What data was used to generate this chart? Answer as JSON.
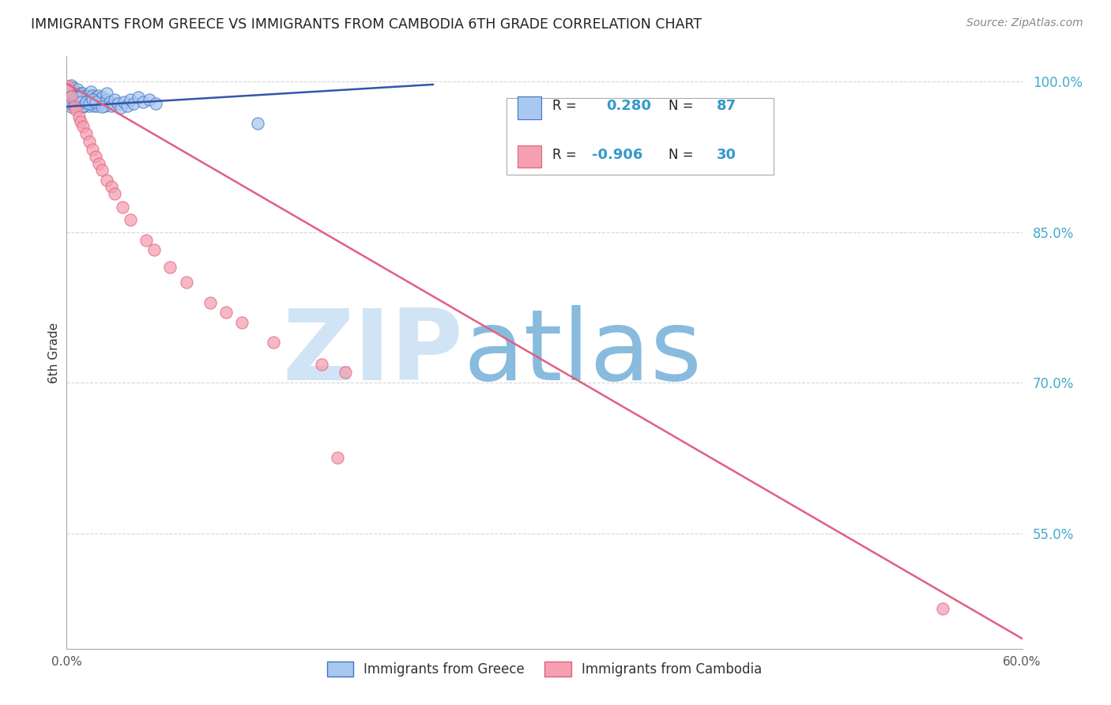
{
  "title": "IMMIGRANTS FROM GREECE VS IMMIGRANTS FROM CAMBODIA 6TH GRADE CORRELATION CHART",
  "source": "Source: ZipAtlas.com",
  "ylabel": "6th Grade",
  "xlim": [
    0.0,
    0.6
  ],
  "ylim": [
    0.435,
    1.025
  ],
  "yticks": [
    1.0,
    0.85,
    0.7,
    0.55
  ],
  "ytick_labels": [
    "100.0%",
    "85.0%",
    "70.0%",
    "55.0%"
  ],
  "xticks": [
    0.0,
    0.1,
    0.2,
    0.3,
    0.4,
    0.5,
    0.6
  ],
  "xtick_labels": [
    "0.0%",
    "",
    "",
    "",
    "",
    "",
    "60.0%"
  ],
  "greece_R": 0.28,
  "greece_N": 87,
  "cambodia_R": -0.906,
  "cambodia_N": 30,
  "greece_color": "#a8c8f0",
  "greece_edge_color": "#4472c4",
  "cambodia_color": "#f4a0b0",
  "cambodia_edge_color": "#e06080",
  "watermark_zip": "ZIP",
  "watermark_atlas": "atlas",
  "watermark_color_zip": "#d0e4f5",
  "watermark_color_atlas": "#88bbdd",
  "background_color": "#ffffff",
  "grid_color": "#cccccc",
  "title_color": "#222222",
  "ytick_color": "#44aacc",
  "legend_text_color": "#222222",
  "legend_value_color": "#3399cc",
  "greece_line_color": "#3355aa",
  "cambodia_line_color": "#dd4477",
  "greece_scatter_x": [
    0.0005,
    0.001,
    0.0012,
    0.0015,
    0.002,
    0.002,
    0.002,
    0.0025,
    0.003,
    0.003,
    0.003,
    0.003,
    0.004,
    0.004,
    0.004,
    0.005,
    0.005,
    0.005,
    0.006,
    0.006,
    0.006,
    0.007,
    0.007,
    0.007,
    0.008,
    0.008,
    0.009,
    0.009,
    0.01,
    0.01,
    0.01,
    0.011,
    0.011,
    0.012,
    0.012,
    0.013,
    0.013,
    0.014,
    0.014,
    0.015,
    0.015,
    0.016,
    0.016,
    0.017,
    0.017,
    0.018,
    0.018,
    0.019,
    0.019,
    0.02,
    0.02,
    0.021,
    0.022,
    0.022,
    0.023,
    0.024,
    0.025,
    0.025,
    0.027,
    0.028,
    0.03,
    0.032,
    0.034,
    0.036,
    0.038,
    0.04,
    0.042,
    0.045,
    0.048,
    0.052,
    0.056,
    0.001,
    0.002,
    0.003,
    0.004,
    0.005,
    0.006,
    0.007,
    0.008,
    0.009,
    0.01,
    0.012,
    0.014,
    0.016,
    0.018,
    0.022,
    0.12
  ],
  "greece_scatter_y": [
    0.99,
    0.985,
    0.98,
    0.983,
    0.978,
    0.985,
    0.992,
    0.982,
    0.975,
    0.988,
    0.992,
    0.996,
    0.98,
    0.988,
    0.994,
    0.978,
    0.984,
    0.99,
    0.982,
    0.976,
    0.99,
    0.98,
    0.986,
    0.992,
    0.978,
    0.985,
    0.98,
    0.988,
    0.975,
    0.982,
    0.988,
    0.98,
    0.986,
    0.978,
    0.984,
    0.98,
    0.986,
    0.982,
    0.976,
    0.984,
    0.99,
    0.98,
    0.986,
    0.982,
    0.976,
    0.978,
    0.984,
    0.982,
    0.976,
    0.98,
    0.986,
    0.982,
    0.978,
    0.984,
    0.98,
    0.976,
    0.982,
    0.988,
    0.98,
    0.976,
    0.982,
    0.978,
    0.974,
    0.98,
    0.976,
    0.982,
    0.978,
    0.984,
    0.98,
    0.982,
    0.978,
    0.992,
    0.984,
    0.978,
    0.986,
    0.98,
    0.984,
    0.978,
    0.984,
    0.98,
    0.976,
    0.98,
    0.978,
    0.982,
    0.98,
    0.975,
    0.958
  ],
  "cambodia_scatter_x": [
    0.001,
    0.003,
    0.005,
    0.006,
    0.008,
    0.009,
    0.01,
    0.012,
    0.014,
    0.016,
    0.018,
    0.02,
    0.022,
    0.025,
    0.028,
    0.03,
    0.035,
    0.04,
    0.05,
    0.055,
    0.065,
    0.075,
    0.09,
    0.1,
    0.11,
    0.13,
    0.16,
    0.175,
    0.55,
    0.17
  ],
  "cambodia_scatter_y": [
    0.995,
    0.985,
    0.975,
    0.972,
    0.965,
    0.96,
    0.955,
    0.948,
    0.94,
    0.932,
    0.925,
    0.918,
    0.912,
    0.902,
    0.895,
    0.888,
    0.875,
    0.862,
    0.842,
    0.832,
    0.815,
    0.8,
    0.78,
    0.77,
    0.76,
    0.74,
    0.718,
    0.71,
    0.475,
    0.625
  ],
  "greece_line_x0": 0.0,
  "greece_line_y0": 0.975,
  "greece_line_x1": 0.23,
  "greece_line_y1": 0.997,
  "cambodia_line_x0": 0.0,
  "cambodia_line_y0": 0.998,
  "cambodia_line_x1": 0.6,
  "cambodia_line_y1": 0.445
}
